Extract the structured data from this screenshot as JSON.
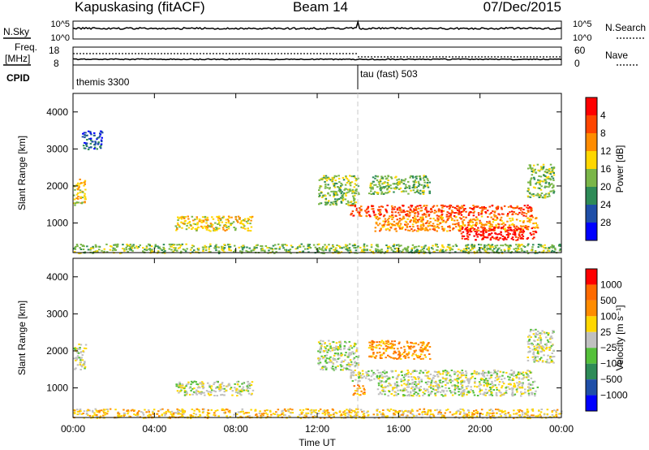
{
  "header": {
    "radar": "Kapuskasing (fitACF)",
    "beam": "Beam 14",
    "date": "07/Dec/2015"
  },
  "top_panels": {
    "nsky_label": "N.Sky",
    "nsky_ticks": [
      "10^5",
      "10^0"
    ],
    "nsearch_label": "N.Search",
    "nsearch_ticks": [
      "10^5",
      "10^0"
    ],
    "freq_label_1": "Freq.",
    "freq_label_2": "[MHz]",
    "freq_ticks": [
      "18",
      "8"
    ],
    "nave_label": "Nave",
    "nave_ticks": [
      "60",
      "0"
    ],
    "cpid_label": "CPID",
    "cpid_segments": [
      {
        "name": "themis 3300",
        "start_hour": 0
      },
      {
        "name": "tau (fast) 503",
        "start_hour": 14
      }
    ]
  },
  "colors": {
    "power": [
      "#0000ff",
      "#1f4fa8",
      "#2e8b57",
      "#7ab648",
      "#ffd700",
      "#ff8c00",
      "#ff4500",
      "#ff0000"
    ],
    "velocity": [
      "#0000ff",
      "#1f4fa8",
      "#2e8b57",
      "#55c03a",
      "#c0c0c0",
      "#ffd700",
      "#ff8c00",
      "#ff6a00",
      "#ff0000"
    ],
    "ground_scatter": "#c0c0c0"
  },
  "chart_data": [
    {
      "type": "heatmap",
      "name": "power",
      "ylabel": "Slant Range [km]",
      "ylim": [
        200,
        4500
      ],
      "y_ticks": [
        1000,
        2000,
        3000,
        4000
      ],
      "xlabel": "Time UT",
      "xlim": [
        "00:00",
        "24:00"
      ],
      "x_ticks": [
        "00:00",
        "04:00",
        "08:00",
        "12:00",
        "16:00",
        "20:00",
        "00:00"
      ],
      "colorbar_label": "Power [dB]",
      "colorbar_ticks": [
        "4",
        "8",
        "12",
        "16",
        "20",
        "24",
        "28"
      ],
      "scatter_regions": [
        {
          "t0": 0.0,
          "t1": 0.6,
          "r0": 1500,
          "r1": 2200,
          "level": 4
        },
        {
          "t0": 0.4,
          "t1": 1.4,
          "r0": 3000,
          "r1": 3500,
          "level": 1
        },
        {
          "t0": 0.0,
          "t1": 24.0,
          "r0": 200,
          "r1": 450,
          "level": 3
        },
        {
          "t0": 5.0,
          "t1": 8.8,
          "r0": 800,
          "r1": 1200,
          "level": 4
        },
        {
          "t0": 12.0,
          "t1": 14.0,
          "r0": 1500,
          "r1": 2300,
          "level": 3
        },
        {
          "t0": 13.6,
          "t1": 22.5,
          "r0": 1200,
          "r1": 1500,
          "level": 6
        },
        {
          "t0": 14.8,
          "t1": 22.8,
          "r0": 800,
          "r1": 1200,
          "level": 5
        },
        {
          "t0": 19.0,
          "t1": 22.8,
          "r0": 550,
          "r1": 900,
          "level": 7
        },
        {
          "t0": 14.5,
          "t1": 17.5,
          "r0": 1800,
          "r1": 2300,
          "level": 3
        },
        {
          "t0": 22.3,
          "t1": 23.6,
          "r0": 1700,
          "r1": 2600,
          "level": 3
        }
      ]
    },
    {
      "type": "heatmap",
      "name": "velocity",
      "ylabel": "Slant Range [km]",
      "ylim": [
        200,
        4500
      ],
      "y_ticks": [
        1000,
        2000,
        3000,
        4000
      ],
      "xlabel": "Time UT",
      "xlim": [
        "00:00",
        "24:00"
      ],
      "x_ticks": [
        "00:00",
        "04:00",
        "08:00",
        "12:00",
        "16:00",
        "20:00",
        "00:00"
      ],
      "colorbar_label": "Velocity [m s⁻¹]",
      "colorbar_ticks": [
        "1000",
        "500",
        "100",
        "25",
        "−25",
        "−100",
        "−500",
        "−1000"
      ],
      "scatter_regions": [
        {
          "t0": 0.0,
          "t1": 0.6,
          "r0": 1500,
          "r1": 2200,
          "level": 4
        },
        {
          "t0": 0.0,
          "t1": 24.0,
          "r0": 200,
          "r1": 450,
          "level": 5
        },
        {
          "t0": 5.0,
          "t1": 8.8,
          "r0": 800,
          "r1": 1200,
          "level": 4
        },
        {
          "t0": 12.0,
          "t1": 14.0,
          "r0": 1500,
          "r1": 2300,
          "level": 4
        },
        {
          "t0": 13.6,
          "t1": 22.5,
          "r0": 1200,
          "r1": 1500,
          "level": 4
        },
        {
          "t0": 14.8,
          "t1": 22.8,
          "r0": 800,
          "r1": 1200,
          "level": 4
        },
        {
          "t0": 13.7,
          "t1": 14.3,
          "r0": 800,
          "r1": 1100,
          "level": 6
        },
        {
          "t0": 14.5,
          "t1": 17.5,
          "r0": 1800,
          "r1": 2300,
          "level": 6
        },
        {
          "t0": 22.3,
          "t1": 23.6,
          "r0": 1700,
          "r1": 2600,
          "level": 4
        }
      ]
    }
  ]
}
